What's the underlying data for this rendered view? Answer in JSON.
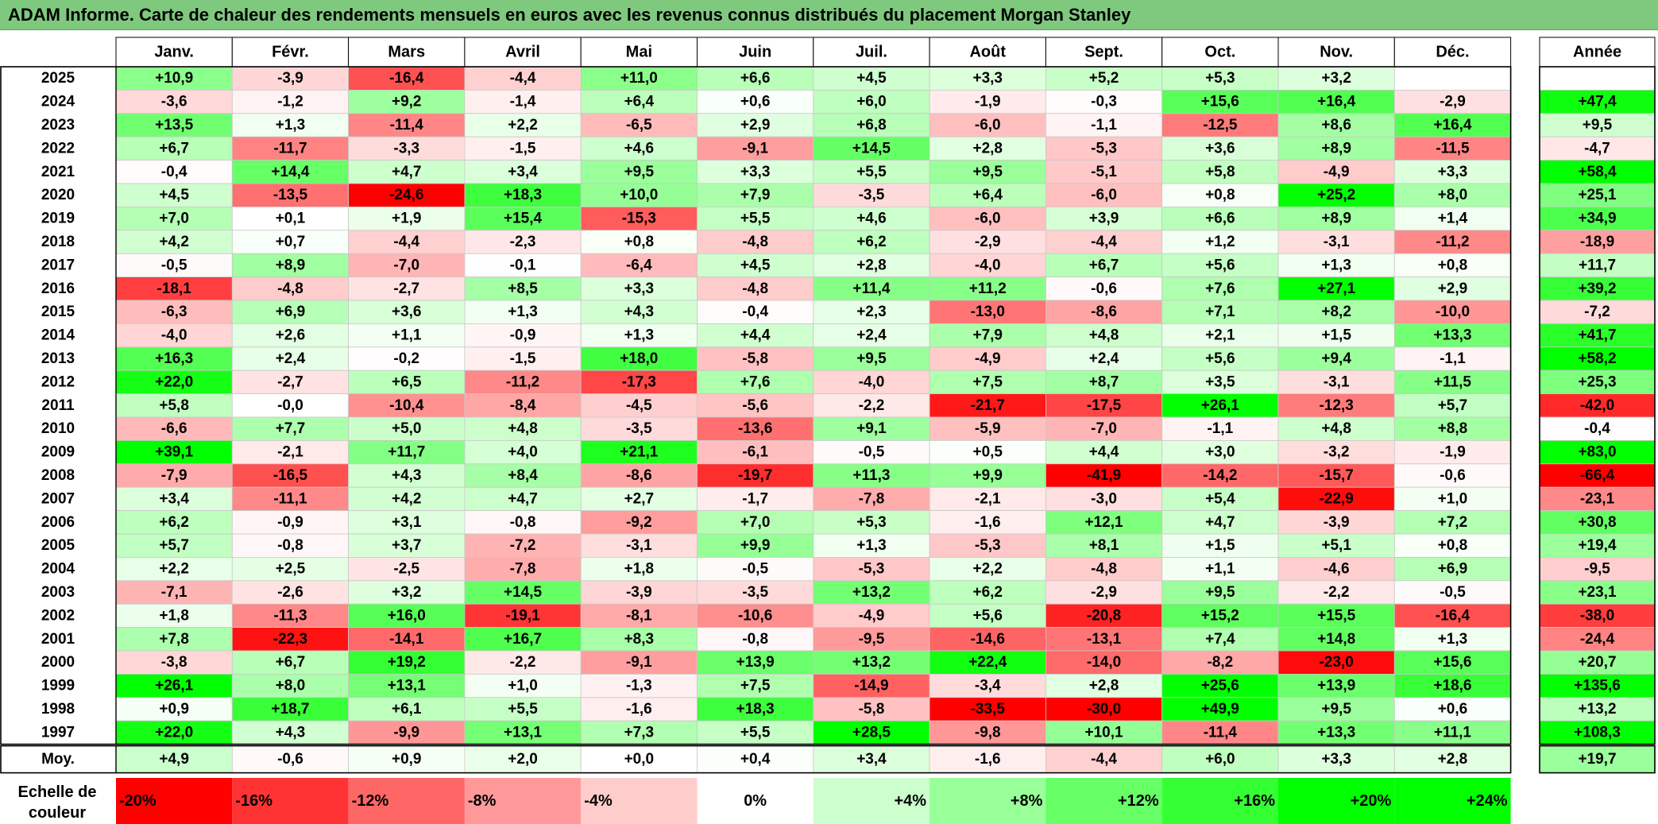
{
  "title": "ADAM Informe. Carte de chaleur des rendements mensuels en euros avec les revenus connus distribués du placement Morgan Stanley",
  "chart_data": {
    "type": "heatmap",
    "months": [
      "Janv.",
      "Févr.",
      "Mars",
      "Avril",
      "Mai",
      "Juin",
      "Juil.",
      "Août",
      "Sept.",
      "Oct.",
      "Nov.",
      "Déc."
    ],
    "annual_header": "Année",
    "rows": [
      {
        "year": "2025",
        "values": [
          "+10,9",
          "-3,9",
          "-16,4",
          "-4,4",
          "+11,0",
          "+6,6",
          "+4,5",
          "+3,3",
          "+5,2",
          "+5,3",
          "+3,2",
          ""
        ],
        "annual": ""
      },
      {
        "year": "2024",
        "values": [
          "-3,6",
          "-1,2",
          "+9,2",
          "-1,4",
          "+6,4",
          "+0,6",
          "+6,0",
          "-1,9",
          "-0,3",
          "+15,6",
          "+16,4",
          "-2,9"
        ],
        "annual": "+47,4"
      },
      {
        "year": "2023",
        "values": [
          "+13,5",
          "+1,3",
          "-11,4",
          "+2,2",
          "-6,5",
          "+2,9",
          "+6,8",
          "-6,0",
          "-1,1",
          "-12,5",
          "+8,6",
          "+16,4"
        ],
        "annual": "+9,5"
      },
      {
        "year": "2022",
        "values": [
          "+6,7",
          "-11,7",
          "-3,3",
          "-1,5",
          "+4,6",
          "-9,1",
          "+14,5",
          "+2,8",
          "-5,3",
          "+3,6",
          "+8,9",
          "-11,5"
        ],
        "annual": "-4,7"
      },
      {
        "year": "2021",
        "values": [
          "-0,4",
          "+14,4",
          "+4,7",
          "+3,4",
          "+9,5",
          "+3,3",
          "+5,5",
          "+9,5",
          "-5,1",
          "+5,8",
          "-4,9",
          "+3,3"
        ],
        "annual": "+58,4"
      },
      {
        "year": "2020",
        "values": [
          "+4,5",
          "-13,5",
          "-24,6",
          "+18,3",
          "+10,0",
          "+7,9",
          "-3,5",
          "+6,4",
          "-6,0",
          "+0,8",
          "+25,2",
          "+8,0"
        ],
        "annual": "+25,1"
      },
      {
        "year": "2019",
        "values": [
          "+7,0",
          "+0,1",
          "+1,9",
          "+15,4",
          "-15,3",
          "+5,5",
          "+4,6",
          "-6,0",
          "+3,9",
          "+6,6",
          "+8,9",
          "+1,4"
        ],
        "annual": "+34,9"
      },
      {
        "year": "2018",
        "values": [
          "+4,2",
          "+0,7",
          "-4,4",
          "-2,3",
          "+0,8",
          "-4,8",
          "+6,2",
          "-2,9",
          "-4,4",
          "+1,2",
          "-3,1",
          "-11,2"
        ],
        "annual": "-18,9"
      },
      {
        "year": "2017",
        "values": [
          "-0,5",
          "+8,9",
          "-7,0",
          "-0,1",
          "-6,4",
          "+4,5",
          "+2,8",
          "-4,0",
          "+6,7",
          "+5,6",
          "+1,3",
          "+0,8"
        ],
        "annual": "+11,7"
      },
      {
        "year": "2016",
        "values": [
          "-18,1",
          "-4,8",
          "-2,7",
          "+8,5",
          "+3,3",
          "-4,8",
          "+11,4",
          "+11,2",
          "-0,6",
          "+7,6",
          "+27,1",
          "+2,9"
        ],
        "annual": "+39,2"
      },
      {
        "year": "2015",
        "values": [
          "-6,3",
          "+6,9",
          "+3,6",
          "+1,3",
          "+4,3",
          "-0,4",
          "+2,3",
          "-13,0",
          "-8,6",
          "+7,1",
          "+8,2",
          "-10,0"
        ],
        "annual": "-7,2"
      },
      {
        "year": "2014",
        "values": [
          "-4,0",
          "+2,6",
          "+1,1",
          "-0,9",
          "+1,3",
          "+4,4",
          "+2,4",
          "+7,9",
          "+4,8",
          "+2,1",
          "+1,5",
          "+13,3"
        ],
        "annual": "+41,7"
      },
      {
        "year": "2013",
        "values": [
          "+16,3",
          "+2,4",
          "-0,2",
          "-1,5",
          "+18,0",
          "-5,8",
          "+9,5",
          "-4,9",
          "+2,4",
          "+5,6",
          "+9,4",
          "-1,1"
        ],
        "annual": "+58,2"
      },
      {
        "year": "2012",
        "values": [
          "+22,0",
          "-2,7",
          "+6,5",
          "-11,2",
          "-17,3",
          "+7,6",
          "-4,0",
          "+7,5",
          "+8,7",
          "+3,5",
          "-3,1",
          "+11,5"
        ],
        "annual": "+25,3"
      },
      {
        "year": "2011",
        "values": [
          "+5,8",
          "-0,0",
          "-10,4",
          "-8,4",
          "-4,5",
          "-5,6",
          "-2,2",
          "-21,7",
          "-17,5",
          "+26,1",
          "-12,3",
          "+5,7"
        ],
        "annual": "-42,0"
      },
      {
        "year": "2010",
        "values": [
          "-6,6",
          "+7,7",
          "+5,0",
          "+4,8",
          "-3,5",
          "-13,6",
          "+9,1",
          "-5,9",
          "-7,0",
          "-1,1",
          "+4,8",
          "+8,8"
        ],
        "annual": "-0,4"
      },
      {
        "year": "2009",
        "values": [
          "+39,1",
          "-2,1",
          "+11,7",
          "+4,0",
          "+21,1",
          "-6,1",
          "-0,5",
          "+0,5",
          "+4,4",
          "+3,0",
          "-3,2",
          "-1,9"
        ],
        "annual": "+83,0"
      },
      {
        "year": "2008",
        "values": [
          "-7,9",
          "-16,5",
          "+4,3",
          "+8,4",
          "-8,6",
          "-19,7",
          "+11,3",
          "+9,9",
          "-41,9",
          "-14,2",
          "-15,7",
          "-0,6"
        ],
        "annual": "-66,4"
      },
      {
        "year": "2007",
        "values": [
          "+3,4",
          "-11,1",
          "+4,2",
          "+4,7",
          "+2,7",
          "-1,7",
          "-7,8",
          "-2,1",
          "-3,0",
          "+5,4",
          "-22,9",
          "+1,0"
        ],
        "annual": "-23,1"
      },
      {
        "year": "2006",
        "values": [
          "+6,2",
          "-0,9",
          "+3,1",
          "-0,8",
          "-9,2",
          "+7,0",
          "+5,3",
          "-1,6",
          "+12,1",
          "+4,7",
          "-3,9",
          "+7,2"
        ],
        "annual": "+30,8"
      },
      {
        "year": "2005",
        "values": [
          "+5,7",
          "-0,8",
          "+3,7",
          "-7,2",
          "-3,1",
          "+9,9",
          "+1,3",
          "-5,3",
          "+8,1",
          "+1,5",
          "+5,1",
          "+0,8"
        ],
        "annual": "+19,4"
      },
      {
        "year": "2004",
        "values": [
          "+2,2",
          "+2,5",
          "-2,5",
          "-7,8",
          "+1,8",
          "-0,5",
          "-5,3",
          "+2,2",
          "-4,8",
          "+1,1",
          "-4,6",
          "+6,9"
        ],
        "annual": "-9,5"
      },
      {
        "year": "2003",
        "values": [
          "-7,1",
          "-2,6",
          "+3,2",
          "+14,5",
          "-3,9",
          "-3,5",
          "+13,2",
          "+6,2",
          "-2,9",
          "+9,5",
          "-2,2",
          "-0,5"
        ],
        "annual": "+23,1"
      },
      {
        "year": "2002",
        "values": [
          "+1,8",
          "-11,3",
          "+16,0",
          "-19,1",
          "-8,1",
          "-10,6",
          "-4,9",
          "+5,6",
          "-20,8",
          "+15,2",
          "+15,5",
          "-16,4"
        ],
        "annual": "-38,0"
      },
      {
        "year": "2001",
        "values": [
          "+7,8",
          "-22,3",
          "-14,1",
          "+16,7",
          "+8,3",
          "-0,8",
          "-9,5",
          "-14,6",
          "-13,1",
          "+7,4",
          "+14,8",
          "+1,3"
        ],
        "annual": "-24,4"
      },
      {
        "year": "2000",
        "values": [
          "-3,8",
          "+6,7",
          "+19,2",
          "-2,2",
          "-9,1",
          "+13,9",
          "+13,2",
          "+22,4",
          "-14,0",
          "-8,2",
          "-23,0",
          "+15,6"
        ],
        "annual": "+20,7"
      },
      {
        "year": "1999",
        "values": [
          "+26,1",
          "+8,0",
          "+13,1",
          "+1,0",
          "-1,3",
          "+7,5",
          "-14,9",
          "-3,4",
          "+2,8",
          "+25,6",
          "+13,9",
          "+18,6"
        ],
        "annual": "+135,6"
      },
      {
        "year": "1998",
        "values": [
          "+0,9",
          "+18,7",
          "+6,1",
          "+5,5",
          "-1,6",
          "+18,3",
          "-5,8",
          "-33,5",
          "-30,0",
          "+49,9",
          "+9,5",
          "+0,6"
        ],
        "annual": "+13,2"
      },
      {
        "year": "1997",
        "values": [
          "+22,0",
          "+4,3",
          "-9,9",
          "+13,1",
          "+7,3",
          "+5,5",
          "+28,5",
          "-9,8",
          "+10,1",
          "-11,4",
          "+13,3",
          "+11,1"
        ],
        "annual": "+108,3"
      }
    ],
    "average": {
      "label": "Moy.",
      "values": [
        "+4,9",
        "-0,6",
        "+0,9",
        "+2,0",
        "+0,0",
        "+0,4",
        "+3,4",
        "-1,6",
        "-4,4",
        "+6,0",
        "+3,3",
        "+2,8"
      ],
      "annual": "+19,7"
    },
    "scale": {
      "label_line1": "Echelle de",
      "label_line2": "couleur",
      "steps": [
        "-20%",
        "-16%",
        "-12%",
        "-8%",
        "-4%",
        "0%",
        "+4%",
        "+8%",
        "+12%",
        "+16%",
        "+20%",
        "+24%"
      ],
      "step_values": [
        -20,
        -16,
        -12,
        -8,
        -4,
        0,
        4,
        8,
        12,
        16,
        20,
        24
      ]
    },
    "colors": {
      "negative_max": "#ff0000",
      "neutral": "#ffffff",
      "positive_max": "#00ff00",
      "title_bar": "#7fc97f"
    }
  }
}
